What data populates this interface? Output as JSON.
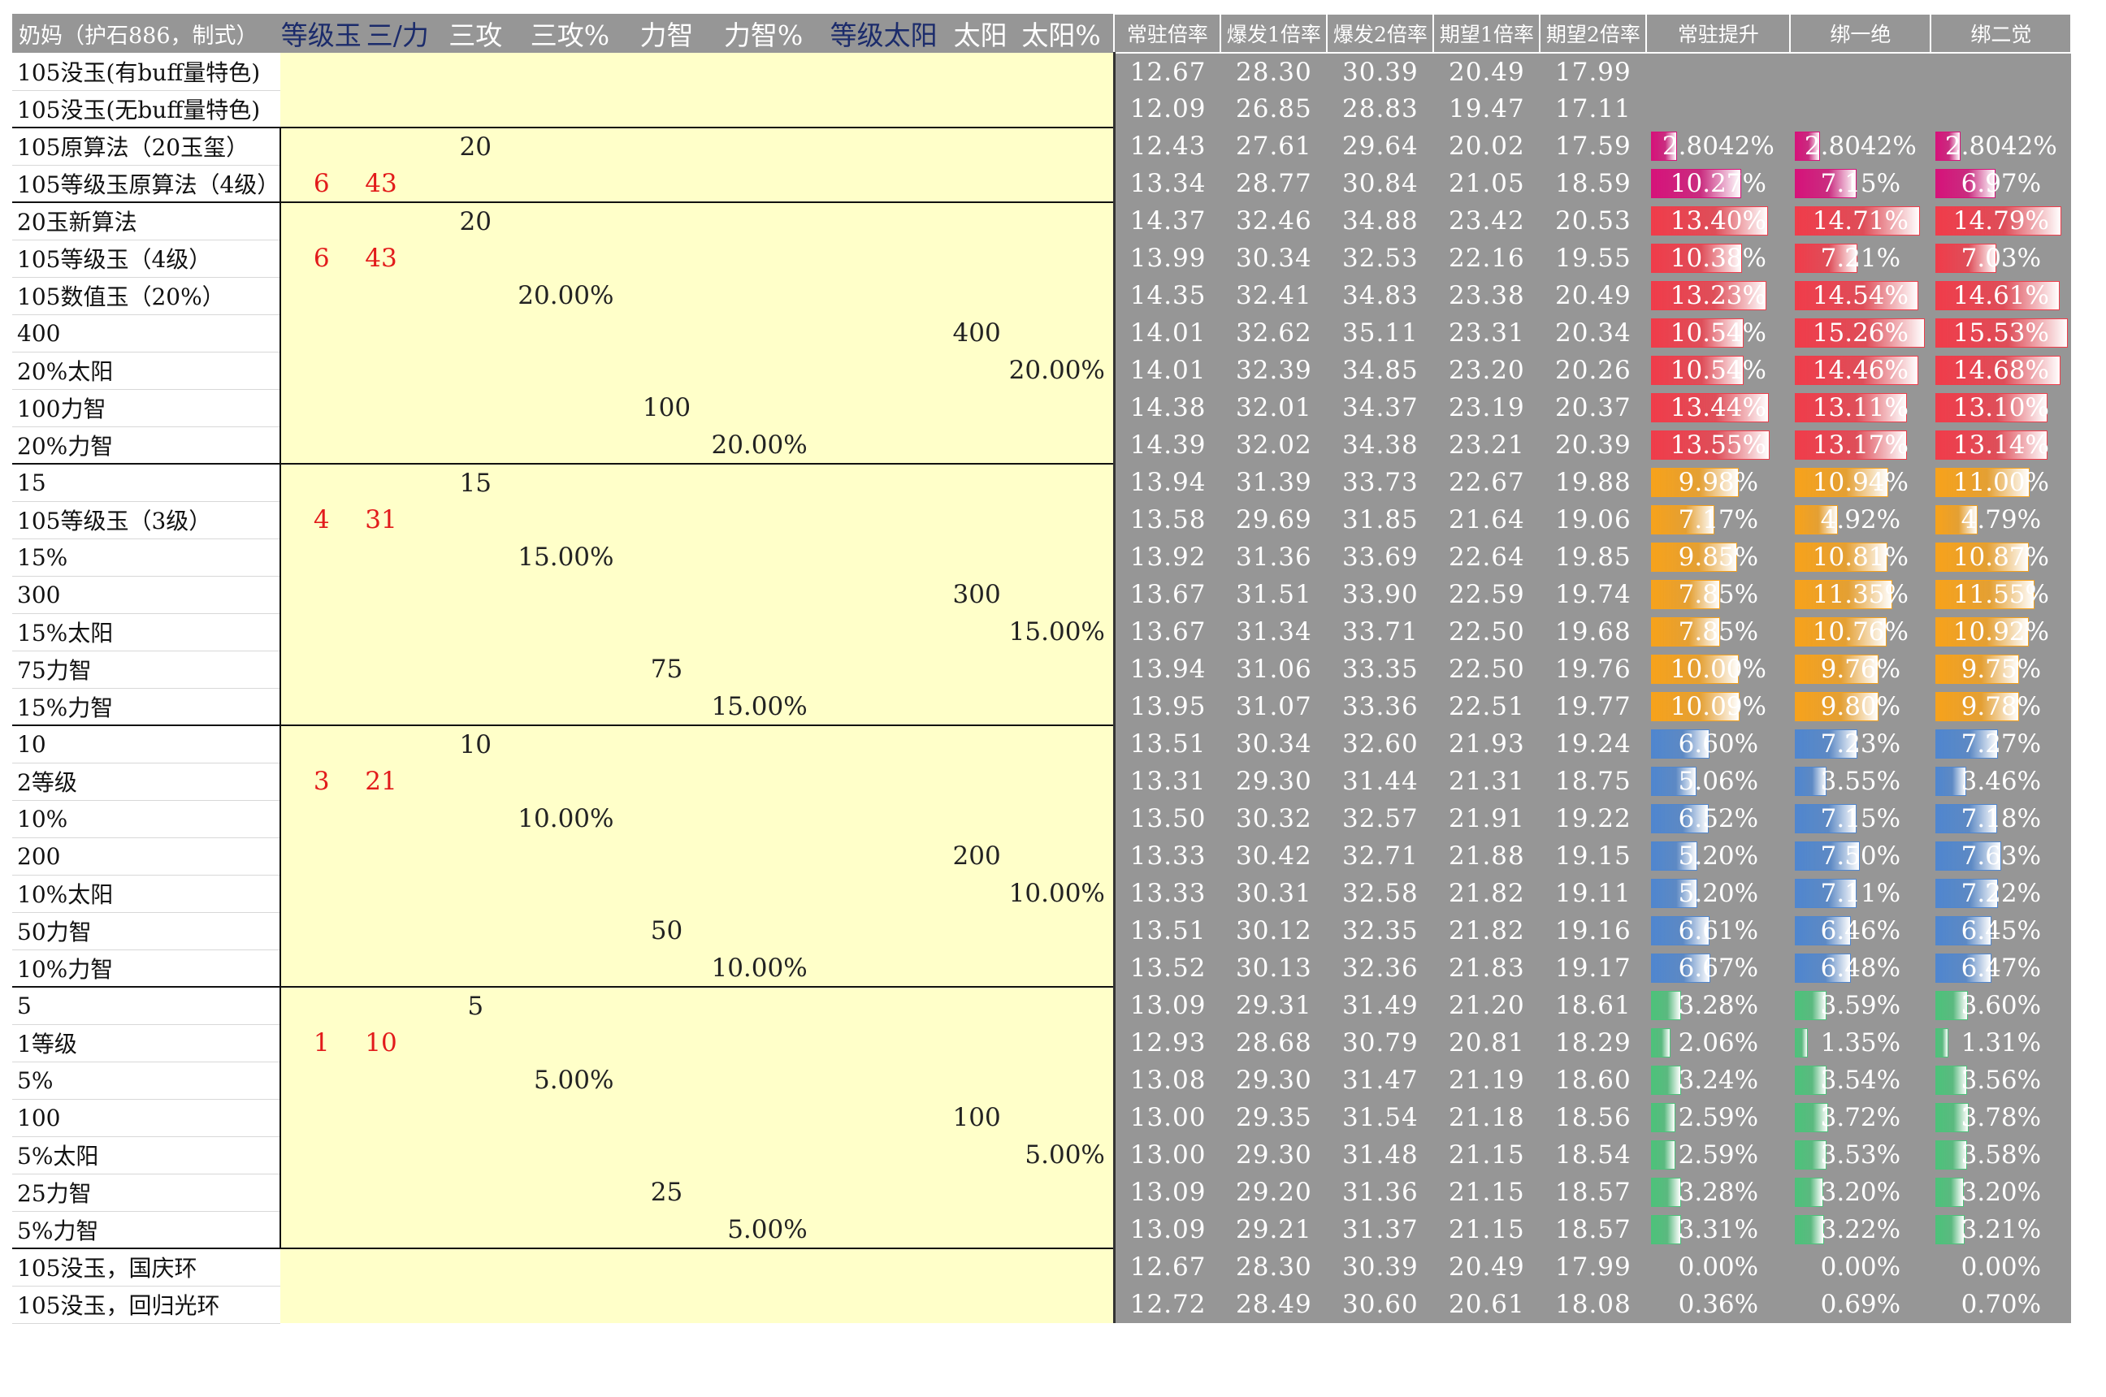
{
  "headers": {
    "name": "奶妈（护石886，制式）",
    "params": [
      "等级玉",
      "三/力",
      "三攻",
      "三攻%",
      "力智",
      "力智%",
      "等级太阳",
      "太阳",
      "太阳%"
    ],
    "metrics": [
      "常驻倍率",
      "爆发1倍率",
      "爆发2倍率",
      "期望1倍率",
      "期望2倍率",
      "常驻提升",
      "绑一绝",
      "绑二觉"
    ]
  },
  "bar_colors": {
    "magenta": "#d6127a",
    "red": "#f03c4a",
    "orange": "#f7a21b",
    "blue": "#4f86cf",
    "green": "#4cc27a"
  },
  "rows": [
    {
      "label": "105没玉(有buff量特色)",
      "params": [
        "",
        "",
        "",
        "",
        "",
        "",
        "",
        "",
        ""
      ],
      "vals": [
        "12.67",
        "28.30",
        "30.39",
        "20.49",
        "17.99"
      ],
      "pcts": [
        "",
        "",
        ""
      ],
      "pnum": [
        null,
        null,
        null
      ],
      "color": "none"
    },
    {
      "label": "105没玉(无buff量特色)",
      "params": [
        "",
        "",
        "",
        "",
        "",
        "",
        "",
        "",
        ""
      ],
      "vals": [
        "12.09",
        "26.85",
        "28.83",
        "19.47",
        "17.11"
      ],
      "pcts": [
        "",
        "",
        ""
      ],
      "pnum": [
        null,
        null,
        null
      ],
      "color": "none"
    },
    {
      "label": "105原算法（20玉玺）",
      "params": [
        "",
        "",
        "20",
        "",
        "",
        "",
        "",
        "",
        ""
      ],
      "vals": [
        "12.43",
        "27.61",
        "29.64",
        "20.02",
        "17.59"
      ],
      "pcts": [
        "2.8042%",
        "2.8042%",
        "2.8042%"
      ],
      "pnum": [
        2.8042,
        2.8042,
        2.8042
      ],
      "color": "magenta"
    },
    {
      "label": "105等级玉原算法（4级）",
      "params": [
        "6",
        "43",
        "",
        "",
        "",
        "",
        "",
        "",
        ""
      ],
      "vals": [
        "13.34",
        "28.77",
        "30.84",
        "21.05",
        "18.59"
      ],
      "pcts": [
        "10.27%",
        "7.15%",
        "6.97%"
      ],
      "pnum": [
        10.27,
        7.15,
        6.97
      ],
      "color": "magenta"
    },
    {
      "label": "20玉新算法",
      "params": [
        "",
        "",
        "20",
        "",
        "",
        "",
        "",
        "",
        ""
      ],
      "vals": [
        "14.37",
        "32.46",
        "34.88",
        "23.42",
        "20.53"
      ],
      "pcts": [
        "13.40%",
        "14.71%",
        "14.79%"
      ],
      "pnum": [
        13.4,
        14.71,
        14.79
      ],
      "color": "red"
    },
    {
      "label": "105等级玉（4级）",
      "params": [
        "6",
        "43",
        "",
        "",
        "",
        "",
        "",
        "",
        ""
      ],
      "vals": [
        "13.99",
        "30.34",
        "32.53",
        "22.16",
        "19.55"
      ],
      "pcts": [
        "10.38%",
        "7.21%",
        "7.03%"
      ],
      "pnum": [
        10.38,
        7.21,
        7.03
      ],
      "color": "red"
    },
    {
      "label": "105数值玉（20%）",
      "params": [
        "",
        "",
        "",
        "20.00%",
        "",
        "",
        "",
        "",
        ""
      ],
      "vals": [
        "14.35",
        "32.41",
        "34.83",
        "23.38",
        "20.49"
      ],
      "pcts": [
        "13.23%",
        "14.54%",
        "14.61%"
      ],
      "pnum": [
        13.23,
        14.54,
        14.61
      ],
      "color": "red"
    },
    {
      "label": "400",
      "params": [
        "",
        "",
        "",
        "",
        "",
        "",
        "",
        "400",
        ""
      ],
      "vals": [
        "14.01",
        "32.62",
        "35.11",
        "23.31",
        "20.34"
      ],
      "pcts": [
        "10.54%",
        "15.26%",
        "15.53%"
      ],
      "pnum": [
        10.54,
        15.26,
        15.53
      ],
      "color": "red"
    },
    {
      "label": "20%太阳",
      "params": [
        "",
        "",
        "",
        "",
        "",
        "",
        "",
        "",
        "20.00%"
      ],
      "vals": [
        "14.01",
        "32.39",
        "34.85",
        "23.20",
        "20.26"
      ],
      "pcts": [
        "10.54%",
        "14.46%",
        "14.68%"
      ],
      "pnum": [
        10.54,
        14.46,
        14.68
      ],
      "color": "red"
    },
    {
      "label": "100力智",
      "params": [
        "",
        "",
        "",
        "",
        "100",
        "",
        "",
        "",
        ""
      ],
      "vals": [
        "14.38",
        "32.01",
        "34.37",
        "23.19",
        "20.37"
      ],
      "pcts": [
        "13.44%",
        "13.11%",
        "13.10%"
      ],
      "pnum": [
        13.44,
        13.11,
        13.1
      ],
      "color": "red"
    },
    {
      "label": "20%力智",
      "params": [
        "",
        "",
        "",
        "",
        "",
        "20.00%",
        "",
        "",
        ""
      ],
      "vals": [
        "14.39",
        "32.02",
        "34.38",
        "23.21",
        "20.39"
      ],
      "pcts": [
        "13.55%",
        "13.17%",
        "13.14%"
      ],
      "pnum": [
        13.55,
        13.17,
        13.14
      ],
      "color": "red"
    },
    {
      "label": "15",
      "params": [
        "",
        "",
        "15",
        "",
        "",
        "",
        "",
        "",
        ""
      ],
      "vals": [
        "13.94",
        "31.39",
        "33.73",
        "22.67",
        "19.88"
      ],
      "pcts": [
        "9.98%",
        "10.94%",
        "11.00%"
      ],
      "pnum": [
        9.98,
        10.94,
        11.0
      ],
      "color": "orange"
    },
    {
      "label": "105等级玉（3级）",
      "params": [
        "4",
        "31",
        "",
        "",
        "",
        "",
        "",
        "",
        ""
      ],
      "vals": [
        "13.58",
        "29.69",
        "31.85",
        "21.64",
        "19.06"
      ],
      "pcts": [
        "7.17%",
        "4.92%",
        "4.79%"
      ],
      "pnum": [
        7.17,
        4.92,
        4.79
      ],
      "color": "orange"
    },
    {
      "label": "15%",
      "params": [
        "",
        "",
        "",
        "15.00%",
        "",
        "",
        "",
        "",
        ""
      ],
      "vals": [
        "13.92",
        "31.36",
        "33.69",
        "22.64",
        "19.85"
      ],
      "pcts": [
        "9.85%",
        "10.81%",
        "10.87%"
      ],
      "pnum": [
        9.85,
        10.81,
        10.87
      ],
      "color": "orange"
    },
    {
      "label": "300",
      "params": [
        "",
        "",
        "",
        "",
        "",
        "",
        "",
        "300",
        ""
      ],
      "vals": [
        "13.67",
        "31.51",
        "33.90",
        "22.59",
        "19.74"
      ],
      "pcts": [
        "7.85%",
        "11.35%",
        "11.55%"
      ],
      "pnum": [
        7.85,
        11.35,
        11.55
      ],
      "color": "orange"
    },
    {
      "label": "15%太阳",
      "params": [
        "",
        "",
        "",
        "",
        "",
        "",
        "",
        "",
        "15.00%"
      ],
      "vals": [
        "13.67",
        "31.34",
        "33.71",
        "22.50",
        "19.68"
      ],
      "pcts": [
        "7.85%",
        "10.76%",
        "10.92%"
      ],
      "pnum": [
        7.85,
        10.76,
        10.92
      ],
      "color": "orange"
    },
    {
      "label": "75力智",
      "params": [
        "",
        "",
        "",
        "",
        "75",
        "",
        "",
        "",
        ""
      ],
      "vals": [
        "13.94",
        "31.06",
        "33.35",
        "22.50",
        "19.76"
      ],
      "pcts": [
        "10.00%",
        "9.76%",
        "9.75%"
      ],
      "pnum": [
        10.0,
        9.76,
        9.75
      ],
      "color": "orange"
    },
    {
      "label": "15%力智",
      "params": [
        "",
        "",
        "",
        "",
        "",
        "15.00%",
        "",
        "",
        ""
      ],
      "vals": [
        "13.95",
        "31.07",
        "33.36",
        "22.51",
        "19.77"
      ],
      "pcts": [
        "10.09%",
        "9.80%",
        "9.78%"
      ],
      "pnum": [
        10.09,
        9.8,
        9.78
      ],
      "color": "orange"
    },
    {
      "label": "10",
      "params": [
        "",
        "",
        "10",
        "",
        "",
        "",
        "",
        "",
        ""
      ],
      "vals": [
        "13.51",
        "30.34",
        "32.60",
        "21.93",
        "19.24"
      ],
      "pcts": [
        "6.60%",
        "7.23%",
        "7.27%"
      ],
      "pnum": [
        6.6,
        7.23,
        7.27
      ],
      "color": "blue"
    },
    {
      "label": "2等级",
      "params": [
        "3",
        "21",
        "",
        "",
        "",
        "",
        "",
        "",
        ""
      ],
      "vals": [
        "13.31",
        "29.30",
        "31.44",
        "21.31",
        "18.75"
      ],
      "pcts": [
        "5.06%",
        "3.55%",
        "3.46%"
      ],
      "pnum": [
        5.06,
        3.55,
        3.46
      ],
      "color": "blue"
    },
    {
      "label": "10%",
      "params": [
        "",
        "",
        "",
        "10.00%",
        "",
        "",
        "",
        "",
        ""
      ],
      "vals": [
        "13.50",
        "30.32",
        "32.57",
        "21.91",
        "19.22"
      ],
      "pcts": [
        "6.52%",
        "7.15%",
        "7.18%"
      ],
      "pnum": [
        6.52,
        7.15,
        7.18
      ],
      "color": "blue"
    },
    {
      "label": "200",
      "params": [
        "",
        "",
        "",
        "",
        "",
        "",
        "",
        "200",
        ""
      ],
      "vals": [
        "13.33",
        "30.42",
        "32.71",
        "21.88",
        "19.15"
      ],
      "pcts": [
        "5.20%",
        "7.50%",
        "7.63%"
      ],
      "pnum": [
        5.2,
        7.5,
        7.63
      ],
      "color": "blue"
    },
    {
      "label": "10%太阳",
      "params": [
        "",
        "",
        "",
        "",
        "",
        "",
        "",
        "",
        "10.00%"
      ],
      "vals": [
        "13.33",
        "30.31",
        "32.58",
        "21.82",
        "19.11"
      ],
      "pcts": [
        "5.20%",
        "7.11%",
        "7.22%"
      ],
      "pnum": [
        5.2,
        7.11,
        7.22
      ],
      "color": "blue"
    },
    {
      "label": "50力智",
      "params": [
        "",
        "",
        "",
        "",
        "50",
        "",
        "",
        "",
        ""
      ],
      "vals": [
        "13.51",
        "30.12",
        "32.35",
        "21.82",
        "19.16"
      ],
      "pcts": [
        "6.61%",
        "6.46%",
        "6.45%"
      ],
      "pnum": [
        6.61,
        6.46,
        6.45
      ],
      "color": "blue"
    },
    {
      "label": "10%力智",
      "params": [
        "",
        "",
        "",
        "",
        "",
        "10.00%",
        "",
        "",
        ""
      ],
      "vals": [
        "13.52",
        "30.13",
        "32.36",
        "21.83",
        "19.17"
      ],
      "pcts": [
        "6.67%",
        "6.48%",
        "6.47%"
      ],
      "pnum": [
        6.67,
        6.48,
        6.47
      ],
      "color": "blue"
    },
    {
      "label": "5",
      "params": [
        "",
        "",
        "5",
        "",
        "",
        "",
        "",
        "",
        ""
      ],
      "vals": [
        "13.09",
        "29.31",
        "31.49",
        "21.20",
        "18.61"
      ],
      "pcts": [
        "3.28%",
        "3.59%",
        "3.60%"
      ],
      "pnum": [
        3.28,
        3.59,
        3.6
      ],
      "color": "green"
    },
    {
      "label": "1等级",
      "params": [
        "1",
        "10",
        "",
        "",
        "",
        "",
        "",
        "",
        ""
      ],
      "vals": [
        "12.93",
        "28.68",
        "30.79",
        "20.81",
        "18.29"
      ],
      "pcts": [
        "2.06%",
        "1.35%",
        "1.31%"
      ],
      "pnum": [
        2.06,
        1.35,
        1.31
      ],
      "color": "green"
    },
    {
      "label": "5%",
      "params": [
        "",
        "",
        "",
        "5.00%",
        "",
        "",
        "",
        "",
        ""
      ],
      "vals": [
        "13.08",
        "29.30",
        "31.47",
        "21.19",
        "18.60"
      ],
      "pcts": [
        "3.24%",
        "3.54%",
        "3.56%"
      ],
      "pnum": [
        3.24,
        3.54,
        3.56
      ],
      "color": "green"
    },
    {
      "label": "100",
      "params": [
        "",
        "",
        "",
        "",
        "",
        "",
        "",
        "100",
        ""
      ],
      "vals": [
        "13.00",
        "29.35",
        "31.54",
        "21.18",
        "18.56"
      ],
      "pcts": [
        "2.59%",
        "3.72%",
        "3.78%"
      ],
      "pnum": [
        2.59,
        3.72,
        3.78
      ],
      "color": "green"
    },
    {
      "label": "5%太阳",
      "params": [
        "",
        "",
        "",
        "",
        "",
        "",
        "",
        "",
        "5.00%"
      ],
      "vals": [
        "13.00",
        "29.30",
        "31.48",
        "21.15",
        "18.54"
      ],
      "pcts": [
        "2.59%",
        "3.53%",
        "3.58%"
      ],
      "pnum": [
        2.59,
        3.53,
        3.58
      ],
      "color": "green"
    },
    {
      "label": "25力智",
      "params": [
        "",
        "",
        "",
        "",
        "25",
        "",
        "",
        "",
        ""
      ],
      "vals": [
        "13.09",
        "29.20",
        "31.36",
        "21.15",
        "18.57"
      ],
      "pcts": [
        "3.28%",
        "3.20%",
        "3.20%"
      ],
      "pnum": [
        3.28,
        3.2,
        3.2
      ],
      "color": "green"
    },
    {
      "label": "5%力智",
      "params": [
        "",
        "",
        "",
        "",
        "",
        "5.00%",
        "",
        "",
        ""
      ],
      "vals": [
        "13.09",
        "29.21",
        "31.37",
        "21.15",
        "18.57"
      ],
      "pcts": [
        "3.31%",
        "3.22%",
        "3.21%"
      ],
      "pnum": [
        3.31,
        3.22,
        3.21
      ],
      "color": "green"
    },
    {
      "label": "105没玉，国庆环",
      "params": [
        "",
        "",
        "",
        "",
        "",
        "",
        "",
        "",
        ""
      ],
      "vals": [
        "12.67",
        "28.30",
        "30.39",
        "20.49",
        "17.99"
      ],
      "pcts": [
        "0.00%",
        "0.00%",
        "0.00%"
      ],
      "pnum": [
        0,
        0,
        0
      ],
      "color": "none"
    },
    {
      "label": "105没玉，回归光环",
      "params": [
        "",
        "",
        "",
        "",
        "",
        "",
        "",
        "",
        ""
      ],
      "vals": [
        "12.72",
        "28.49",
        "30.60",
        "20.61",
        "18.08"
      ],
      "pcts": [
        "0.36%",
        "0.69%",
        "0.70%"
      ],
      "pnum": [
        0.36,
        0.69,
        0.7
      ],
      "color": "none"
    }
  ]
}
